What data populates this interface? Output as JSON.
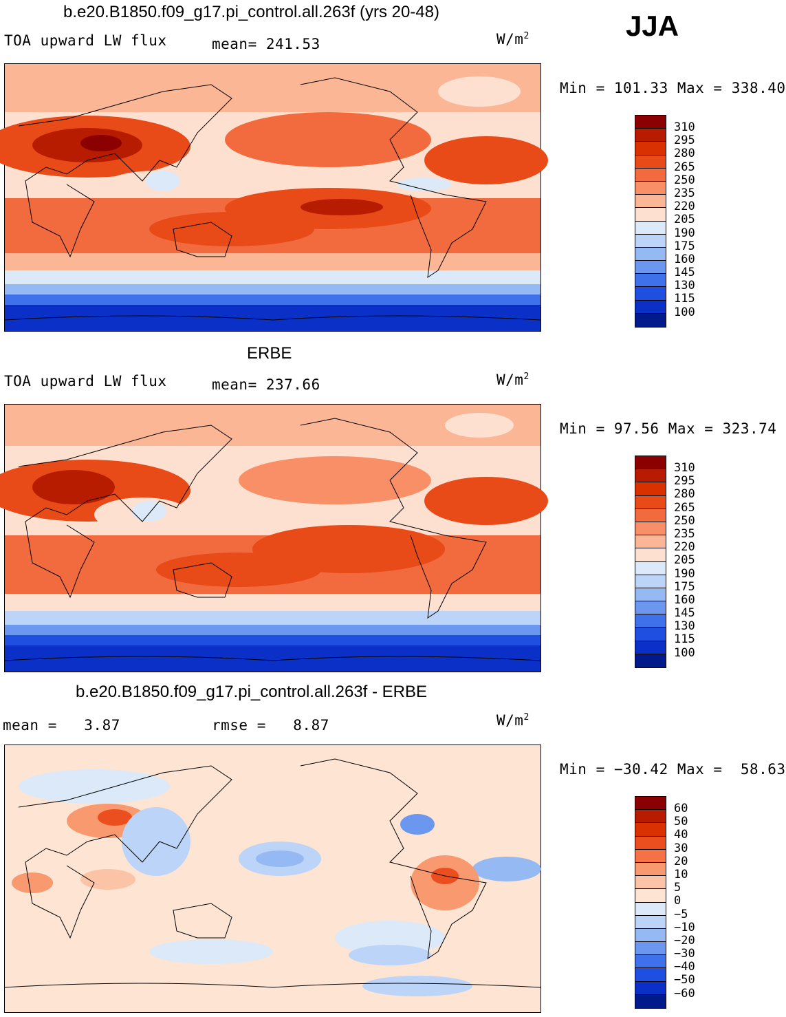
{
  "season": "JJA",
  "panel1": {
    "title": "b.e20.B1850.f09_g17.pi_control.all.263f (yrs 20-48)",
    "variable": "TOA upward LW flux",
    "stat": "mean= 241.53",
    "units_base": "W/m",
    "units_exp": "2",
    "minmax": "Min = 101.33 Max = 338.40",
    "levels": [
      "310",
      "295",
      "280",
      "265",
      "250",
      "235",
      "220",
      "205",
      "190",
      "175",
      "160",
      "145",
      "130",
      "115",
      "100"
    ]
  },
  "panel2": {
    "title": "ERBE",
    "variable": "TOA upward LW flux",
    "stat": "mean= 237.66",
    "units_base": "W/m",
    "units_exp": "2",
    "minmax": "Min =  97.56 Max = 323.74",
    "levels": [
      "310",
      "295",
      "280",
      "265",
      "250",
      "235",
      "220",
      "205",
      "190",
      "175",
      "160",
      "145",
      "130",
      "115",
      "100"
    ]
  },
  "panel3": {
    "title": "b.e20.B1850.f09_g17.pi_control.all.263f - ERBE",
    "stat_mean": "mean =   3.87",
    "stat_rmse": "rmse =   8.87",
    "units_base": "W/m",
    "units_exp": "2",
    "minmax": "Min = −30.42 Max =  58.63",
    "levels": [
      "60",
      "50",
      "40",
      "30",
      "20",
      "10",
      "5",
      "0",
      "−5",
      "−10",
      "−20",
      "−30",
      "−40",
      "−50",
      "−60"
    ]
  },
  "colors": {
    "abs_scale": [
      "#8b0000",
      "#b81c00",
      "#d93200",
      "#e84a18",
      "#f26b3f",
      "#f88f67",
      "#fbb696",
      "#fde0cf",
      "#dbe9f9",
      "#bcd4f7",
      "#95b9f3",
      "#6b97ee",
      "#3f72ea",
      "#1e4fe0",
      "#0a30c8",
      "#001a8c"
    ],
    "diff_scale": [
      "#8b0000",
      "#b81c00",
      "#d93200",
      "#ec4f1f",
      "#f47244",
      "#f8996f",
      "#fbc4a6",
      "#fde4d3",
      "#dbe9f9",
      "#bcd4f7",
      "#95b9f3",
      "#6b97ee",
      "#3f72ea",
      "#1e4fe0",
      "#0a30c8",
      "#001a8c"
    ]
  }
}
